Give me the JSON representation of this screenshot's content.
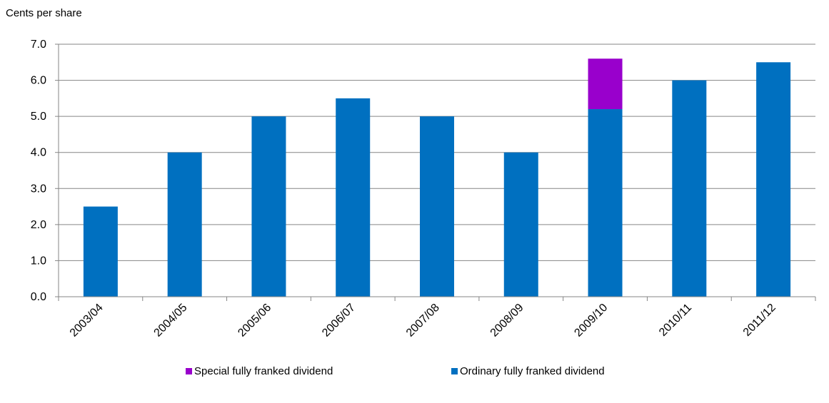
{
  "chart_data": {
    "type": "bar",
    "stacked": true,
    "ylabel": "Cents per share",
    "xlabel": "",
    "ylim": [
      0,
      7
    ],
    "y_ticks": [
      "0.0",
      "1.0",
      "2.0",
      "3.0",
      "4.0",
      "5.0",
      "6.0",
      "7.0"
    ],
    "grid": "horizontal",
    "legend_position": "bottom",
    "categories": [
      "2003/04",
      "2004/05",
      "2005/06",
      "2006/07",
      "2007/08",
      "2008/09",
      "2009/10",
      "2010/11",
      "2011/12"
    ],
    "series": [
      {
        "name": "Ordinary fully franked dividend",
        "color": "#0070C0",
        "values": [
          2.5,
          4.0,
          5.0,
          5.5,
          5.0,
          4.0,
          5.2,
          6.0,
          6.5
        ]
      },
      {
        "name": "Special fully franked dividend",
        "color": "#9900CC",
        "values": [
          0,
          0,
          0,
          0,
          0,
          0,
          1.4,
          0,
          0
        ]
      }
    ],
    "legend_order": [
      1,
      0
    ]
  }
}
